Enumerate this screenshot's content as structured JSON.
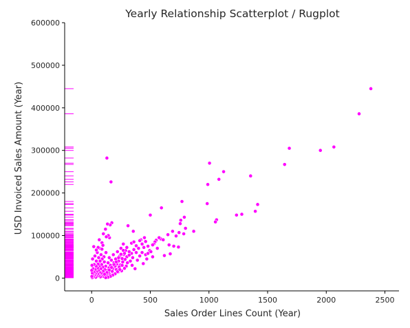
{
  "chart_data": {
    "type": "scatter",
    "title": "Yearly Relationship Scatterplot / Rugplot",
    "xlabel": "Sales Order Lines Count (Year)",
    "ylabel": "USD Invoiced Sales Amount (Year)",
    "xlim": [
      -230,
      2620
    ],
    "ylim": [
      -30000,
      600000
    ],
    "xticks": [
      0,
      500,
      1000,
      1500,
      2000,
      2500
    ],
    "yticks": [
      0,
      100000,
      200000,
      300000,
      400000,
      500000,
      600000
    ],
    "xtick_labels": [
      "0",
      "500",
      "1000",
      "1500",
      "2000",
      "2500"
    ],
    "ytick_labels": [
      "0",
      "100000",
      "200000",
      "300000",
      "400000",
      "500000",
      "600000"
    ],
    "grid": false,
    "rug_axis": "y",
    "marker_color": "#ff00ff",
    "marker_edge_color": "#ffffff",
    "points": [
      [
        2380,
        445000
      ],
      [
        2280,
        386000
      ],
      [
        2065,
        308000
      ],
      [
        1950,
        300000
      ],
      [
        1685,
        305000
      ],
      [
        1645,
        267000
      ],
      [
        1415,
        173000
      ],
      [
        1395,
        157000
      ],
      [
        1355,
        240000
      ],
      [
        1280,
        150000
      ],
      [
        1235,
        148000
      ],
      [
        1125,
        250000
      ],
      [
        1085,
        232000
      ],
      [
        1065,
        137000
      ],
      [
        1055,
        132000
      ],
      [
        1005,
        270000
      ],
      [
        990,
        220000
      ],
      [
        985,
        175000
      ],
      [
        870,
        110000
      ],
      [
        800,
        117000
      ],
      [
        790,
        143000
      ],
      [
        785,
        104000
      ],
      [
        770,
        180000
      ],
      [
        760,
        136000
      ],
      [
        755,
        128000
      ],
      [
        745,
        107000
      ],
      [
        740,
        73000
      ],
      [
        720,
        99000
      ],
      [
        700,
        75000
      ],
      [
        690,
        110000
      ],
      [
        670,
        57000
      ],
      [
        660,
        78000
      ],
      [
        650,
        102000
      ],
      [
        620,
        53000
      ],
      [
        595,
        165000
      ],
      [
        590,
        92000
      ],
      [
        575,
        95000
      ],
      [
        560,
        70000
      ],
      [
        550,
        89000
      ],
      [
        540,
        85000
      ],
      [
        530,
        80000
      ],
      [
        520,
        78000
      ],
      [
        500,
        148000
      ],
      [
        495,
        65000
      ],
      [
        480,
        75000
      ],
      [
        470,
        45000
      ],
      [
        460,
        55000
      ],
      [
        450,
        95000
      ],
      [
        445,
        72000
      ],
      [
        440,
        34000
      ],
      [
        430,
        60000
      ],
      [
        420,
        90000
      ],
      [
        410,
        52000
      ],
      [
        400,
        70000
      ],
      [
        390,
        42000
      ],
      [
        380,
        60000
      ],
      [
        370,
        22000
      ],
      [
        360,
        67000
      ],
      [
        355,
        110000
      ],
      [
        350,
        48000
      ],
      [
        345,
        30000
      ],
      [
        340,
        58000
      ],
      [
        330,
        40000
      ],
      [
        320,
        62000
      ],
      [
        310,
        123000
      ],
      [
        305,
        36000
      ],
      [
        300,
        50000
      ],
      [
        295,
        28000
      ],
      [
        290,
        65000
      ],
      [
        285,
        44000
      ],
      [
        280,
        23000
      ],
      [
        275,
        55000
      ],
      [
        270,
        80000
      ],
      [
        265,
        38000
      ],
      [
        260,
        46000
      ],
      [
        255,
        17000
      ],
      [
        250,
        70000
      ],
      [
        245,
        31000
      ],
      [
        240,
        52000
      ],
      [
        235,
        26000
      ],
      [
        230,
        40000
      ],
      [
        225,
        14000
      ],
      [
        220,
        62000
      ],
      [
        215,
        33000
      ],
      [
        210,
        20000
      ],
      [
        205,
        45000
      ],
      [
        200,
        28000
      ],
      [
        195,
        11000
      ],
      [
        190,
        36000
      ],
      [
        185,
        55000
      ],
      [
        180,
        22000
      ],
      [
        175,
        16000
      ],
      [
        172,
        130000
      ],
      [
        168,
        42000
      ],
      [
        165,
        226000
      ],
      [
        160,
        30000
      ],
      [
        158,
        125000
      ],
      [
        155,
        8000
      ],
      [
        152,
        95000
      ],
      [
        150,
        48000
      ],
      [
        148,
        24000
      ],
      [
        145,
        14000
      ],
      [
        142,
        100000
      ],
      [
        140,
        36000
      ],
      [
        135,
        127000
      ],
      [
        133,
        18000
      ],
      [
        130,
        282000
      ],
      [
        128,
        6000
      ],
      [
        125,
        97000
      ],
      [
        122,
        60000
      ],
      [
        120,
        28000
      ],
      [
        118,
        115000
      ],
      [
        115,
        12000
      ],
      [
        112,
        20000
      ],
      [
        108,
        38000
      ],
      [
        105,
        50000
      ],
      [
        102,
        4000
      ],
      [
        100,
        104000
      ],
      [
        98,
        16000
      ],
      [
        95,
        26000
      ],
      [
        92,
        8000
      ],
      [
        90,
        45000
      ],
      [
        88,
        83000
      ],
      [
        85,
        32000
      ],
      [
        82,
        12000
      ],
      [
        80,
        55000
      ],
      [
        78,
        22000
      ],
      [
        75,
        3000
      ],
      [
        72,
        40000
      ],
      [
        70,
        70000
      ],
      [
        68,
        14000
      ],
      [
        65,
        28000
      ],
      [
        62,
        6000
      ],
      [
        60,
        48000
      ],
      [
        58,
        18000
      ],
      [
        55,
        33000
      ],
      [
        52,
        9000
      ],
      [
        50,
        24000
      ],
      [
        48,
        60000
      ],
      [
        45,
        4000
      ],
      [
        42,
        15000
      ],
      [
        40,
        40000
      ],
      [
        38,
        28000
      ],
      [
        35,
        2000
      ],
      [
        32,
        10000
      ],
      [
        30,
        20000
      ],
      [
        28,
        52000
      ],
      [
        25,
        6000
      ],
      [
        22,
        32000
      ],
      [
        20,
        14000
      ],
      [
        18,
        74000
      ],
      [
        15,
        3000
      ],
      [
        12,
        22000
      ],
      [
        10,
        8000
      ],
      [
        8,
        45000
      ],
      [
        6,
        12000
      ],
      [
        5,
        1000
      ],
      [
        3,
        30000
      ],
      [
        2,
        4000
      ],
      [
        1,
        18000
      ],
      [
        340,
        82000
      ],
      [
        360,
        85000
      ],
      [
        380,
        76000
      ],
      [
        410,
        88000
      ],
      [
        430,
        80000
      ],
      [
        460,
        86000
      ],
      [
        480,
        58000
      ],
      [
        505,
        62000
      ],
      [
        520,
        50000
      ],
      [
        610,
        90000
      ],
      [
        300,
        72000
      ],
      [
        270,
        65000
      ],
      [
        250,
        56000
      ],
      [
        230,
        48000
      ],
      [
        210,
        38000
      ],
      [
        190,
        32000
      ],
      [
        170,
        25000
      ],
      [
        150,
        19000
      ],
      [
        130,
        13000
      ],
      [
        110,
        9000
      ],
      [
        280,
        58000
      ],
      [
        320,
        54000
      ],
      [
        260,
        30000
      ],
      [
        240,
        20000
      ],
      [
        220,
        15000
      ],
      [
        200,
        10000
      ],
      [
        180,
        7000
      ],
      [
        160,
        4000
      ],
      [
        140,
        2000
      ],
      [
        120,
        1000
      ],
      [
        88,
        68000
      ],
      [
        96,
        77000
      ],
      [
        65,
        90000
      ],
      [
        55,
        72000
      ],
      [
        40,
        66000
      ]
    ]
  }
}
